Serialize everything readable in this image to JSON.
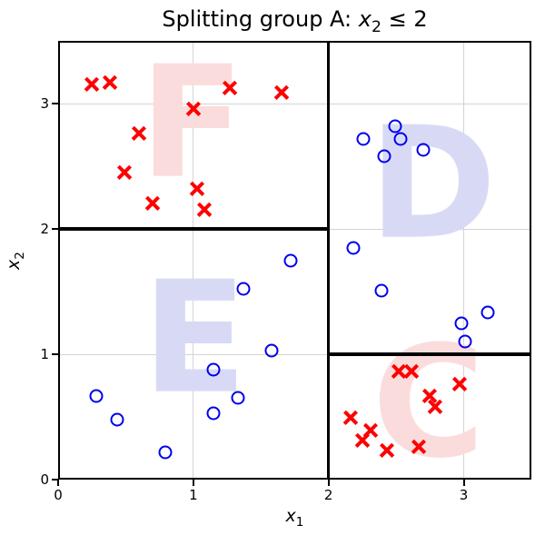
{
  "title": {
    "prefix": "Splitting group A: ",
    "var": "x",
    "sub": "2",
    "rest": " ≤ 2"
  },
  "axes": {
    "x_var": "x",
    "x_sub": "1",
    "y_var": "x",
    "y_sub": "2",
    "x_ticks": [
      0,
      1,
      2,
      3
    ],
    "y_ticks": [
      0,
      1,
      2,
      3
    ]
  },
  "chart_data": {
    "type": "scatter",
    "title": "Splitting group A: x₂ ≤ 2",
    "xlabel": "x₁",
    "ylabel": "x₂",
    "xlim": [
      0,
      3.5
    ],
    "ylim": [
      0,
      3.5
    ],
    "grid": true,
    "x_gridlines": [
      1,
      2,
      3
    ],
    "y_gridlines": [
      1,
      2,
      3
    ],
    "legend": "none",
    "colors": {
      "red": "#ff0000",
      "blue": "#0000ee",
      "grid": "#d4d4d4",
      "split": "#000000",
      "letter_pink": "#fbdcdc",
      "letter_blue": "#d8daf5"
    },
    "series": [
      {
        "name": "class-red-x",
        "marker": "x",
        "color": "#ff0000",
        "points": [
          [
            0.25,
            3.15
          ],
          [
            0.38,
            3.17
          ],
          [
            0.6,
            2.76
          ],
          [
            0.49,
            2.45
          ],
          [
            0.7,
            2.2
          ],
          [
            1.0,
            2.96
          ],
          [
            1.03,
            2.32
          ],
          [
            1.08,
            2.15
          ],
          [
            1.27,
            3.12
          ],
          [
            1.65,
            3.09
          ],
          [
            2.16,
            0.49
          ],
          [
            2.25,
            0.31
          ],
          [
            2.31,
            0.39
          ],
          [
            2.43,
            0.23
          ],
          [
            2.52,
            0.86
          ],
          [
            2.61,
            0.86
          ],
          [
            2.67,
            0.26
          ],
          [
            2.75,
            0.67
          ],
          [
            2.79,
            0.58
          ],
          [
            2.97,
            0.76
          ]
        ]
      },
      {
        "name": "class-blue-circle",
        "marker": "circle",
        "color": "#0000ee",
        "points": [
          [
            0.28,
            0.67
          ],
          [
            0.44,
            0.48
          ],
          [
            0.79,
            0.22
          ],
          [
            1.15,
            0.88
          ],
          [
            1.15,
            0.53
          ],
          [
            1.33,
            0.65
          ],
          [
            1.37,
            1.52
          ],
          [
            1.58,
            1.03
          ],
          [
            1.72,
            1.75
          ],
          [
            2.18,
            1.85
          ],
          [
            2.26,
            2.72
          ],
          [
            2.39,
            1.51
          ],
          [
            2.41,
            2.58
          ],
          [
            2.49,
            2.82
          ],
          [
            2.53,
            2.72
          ],
          [
            2.7,
            2.63
          ],
          [
            2.98,
            1.25
          ],
          [
            3.01,
            1.1
          ],
          [
            3.18,
            1.33
          ]
        ]
      }
    ],
    "split_lines": [
      {
        "x1": 2,
        "y1": 0,
        "x2": 2,
        "y2": 3.5
      },
      {
        "x1": 0,
        "y1": 2,
        "x2": 2,
        "y2": 2
      },
      {
        "x1": 2,
        "y1": 1,
        "x2": 3.5,
        "y2": 1
      }
    ],
    "regions": [
      {
        "label": "F",
        "x": 0.99,
        "y": 2.82,
        "color": "#fbdcdc"
      },
      {
        "label": "D",
        "x": 2.77,
        "y": 2.33,
        "color": "#d8daf5"
      },
      {
        "label": "E",
        "x": 1.01,
        "y": 1.1,
        "color": "#d8daf5"
      },
      {
        "label": "C",
        "x": 2.74,
        "y": 0.59,
        "color": "#fbdcdc"
      }
    ]
  }
}
